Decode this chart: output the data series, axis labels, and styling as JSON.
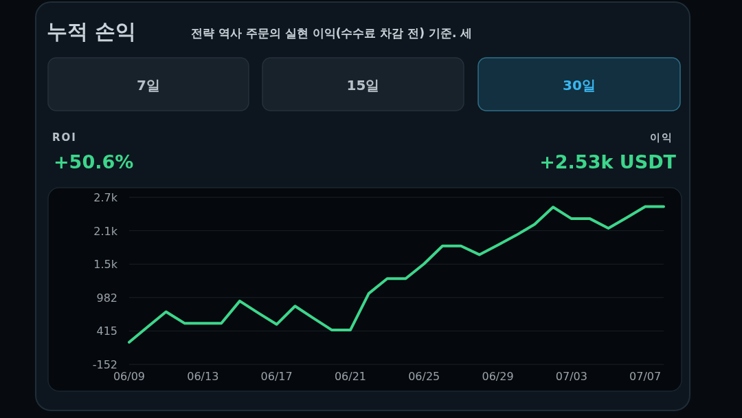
{
  "chart_data": {
    "type": "line",
    "title": "누적 손익",
    "subtitle": "전략 역사 주문의 실현 이익(수수료 차감 전) 기준. 세",
    "annotations": [
      "7일",
      "15일",
      "30일",
      "ROI",
      "+50.6%",
      "이익",
      "+2.53k USDT"
    ],
    "categories": [
      "06/09",
      null,
      null,
      null,
      "06/13",
      null,
      null,
      null,
      "06/17",
      null,
      null,
      null,
      "06/21",
      null,
      null,
      null,
      "06/25",
      null,
      null,
      null,
      "06/29",
      null,
      null,
      null,
      "07/03",
      null,
      null,
      null,
      "07/07",
      null
    ],
    "series": [
      {
        "color": "#3dd68c",
        "values": [
          224,
          484,
          740,
          546,
          546,
          546,
          923,
          721,
          527,
          837,
          632,
          430,
          430,
          1051,
          1303,
          1303,
          1555,
          1858,
          1858,
          1710,
          1873,
          2040,
          2226,
          2517,
          2320,
          2320,
          2157,
          2339,
          2525,
          2525
        ]
      }
    ],
    "ylim": [
      -152,
      2683
    ],
    "yticks": [
      -152,
      415,
      982,
      {
        "value": 1549,
        "label": "1.5k"
      },
      {
        "value": 2116,
        "label": "2.1k"
      },
      {
        "value": 2683,
        "label": "2.7k"
      }
    ],
    "grid": "y",
    "marker": "none",
    "line_style": "solid"
  }
}
